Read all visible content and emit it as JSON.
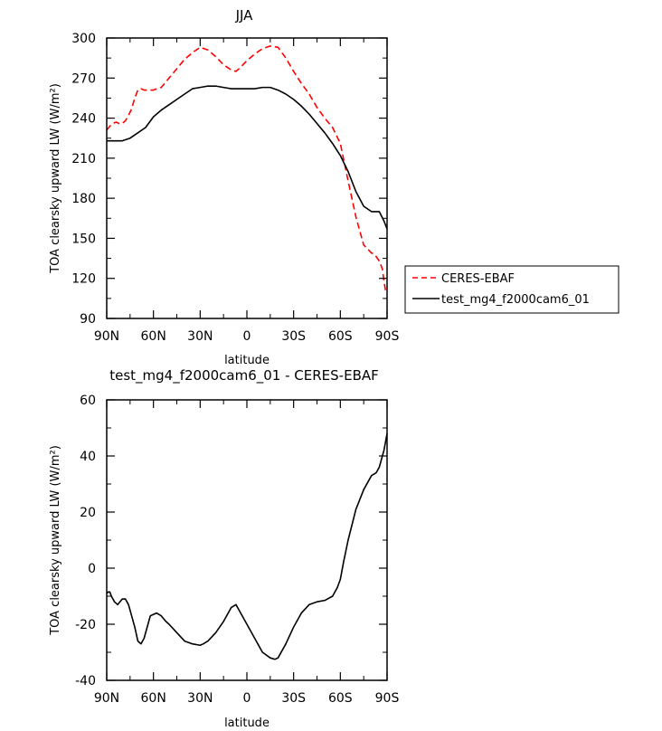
{
  "chart_data": [
    {
      "type": "line",
      "title": "JJA",
      "xlabel": "latitude",
      "ylabel": "TOA clearsky upward LW (W/m²)",
      "xlim": [
        90,
        -90
      ],
      "ylim": [
        90,
        300
      ],
      "xticks": [
        90,
        60,
        30,
        0,
        -30,
        -60,
        -90
      ],
      "xtick_labels": [
        "90N",
        "60N",
        "30N",
        "0",
        "30S",
        "60S",
        "90S"
      ],
      "yticks": [
        90,
        120,
        150,
        180,
        210,
        240,
        270,
        300
      ],
      "ytick_labels": [
        "90",
        "120",
        "150",
        "180",
        "210",
        "240",
        "270",
        "300"
      ],
      "legend_position": "right",
      "series": [
        {
          "name": "CERES-EBAF",
          "color": "#ff0000",
          "style": "dashed",
          "x": [
            90,
            88,
            86,
            84,
            82,
            80,
            78,
            76,
            74,
            72,
            70,
            68,
            66,
            64,
            62,
            60,
            58,
            55,
            52,
            50,
            45,
            40,
            35,
            30,
            25,
            20,
            15,
            10,
            7,
            5,
            0,
            -5,
            -10,
            -15,
            -20,
            -25,
            -30,
            -35,
            -40,
            -45,
            -50,
            -55,
            -60,
            -65,
            -70,
            -75,
            -80,
            -82,
            -85,
            -87,
            -88,
            -89,
            -90
          ],
          "values": [
            231,
            234,
            236,
            237,
            236,
            236,
            238,
            242,
            247,
            255,
            261,
            262,
            261,
            261,
            261,
            261,
            262,
            263,
            267,
            270,
            277,
            284,
            289,
            293,
            291,
            286,
            280,
            276,
            275,
            277,
            283,
            288,
            292,
            294,
            293,
            285,
            275,
            266,
            258,
            248,
            240,
            233,
            221,
            193,
            166,
            145,
            139,
            138,
            133,
            127,
            118,
            111,
            110
          ]
        },
        {
          "name": "test_mg4_f2000cam6_01",
          "color": "#000000",
          "style": "solid",
          "x": [
            90,
            85,
            80,
            75,
            70,
            65,
            60,
            55,
            50,
            45,
            40,
            35,
            30,
            25,
            20,
            15,
            10,
            5,
            0,
            -5,
            -10,
            -15,
            -20,
            -25,
            -30,
            -35,
            -40,
            -45,
            -50,
            -55,
            -60,
            -65,
            -70,
            -75,
            -80,
            -85,
            -88,
            -90
          ],
          "values": [
            223,
            223,
            223,
            225,
            229,
            233,
            241,
            246,
            250,
            254,
            258,
            262,
            263,
            264,
            264,
            263,
            262,
            262,
            262,
            262,
            263,
            263,
            261,
            258,
            254,
            249,
            243,
            236,
            229,
            221,
            212,
            200,
            185,
            174,
            170,
            170,
            163,
            157
          ]
        }
      ]
    },
    {
      "type": "line",
      "title": "test_mg4_f2000cam6_01 - CERES-EBAF",
      "xlabel": "latitude",
      "ylabel": "TOA clearsky upward LW (W/m²)",
      "xlim": [
        90,
        -90
      ],
      "ylim": [
        -40,
        60
      ],
      "xticks": [
        90,
        60,
        30,
        0,
        -30,
        -60,
        -90
      ],
      "xtick_labels": [
        "90N",
        "60N",
        "30N",
        "0",
        "30S",
        "60S",
        "90S"
      ],
      "yticks": [
        -40,
        -20,
        0,
        20,
        40,
        60
      ],
      "ytick_labels": [
        "-40",
        "-20",
        "0",
        "20",
        "40",
        "60"
      ],
      "series": [
        {
          "name": "test_mg4_f2000cam6_01 - CERES-EBAF",
          "color": "#000000",
          "style": "solid",
          "x": [
            90,
            89,
            88,
            87,
            85,
            83,
            80,
            78,
            76,
            74,
            72,
            70,
            68,
            66,
            64,
            62,
            60,
            58,
            55,
            52,
            50,
            45,
            40,
            35,
            30,
            28,
            25,
            20,
            15,
            10,
            7,
            5,
            0,
            -5,
            -10,
            -15,
            -18,
            -20,
            -25,
            -30,
            -35,
            -40,
            -45,
            -50,
            -55,
            -58,
            -60,
            -62,
            -65,
            -70,
            -75,
            -80,
            -83,
            -85,
            -87,
            -88,
            -89,
            -90
          ],
          "values": [
            -9,
            -8.5,
            -8.5,
            -10,
            -12,
            -13,
            -11,
            -11,
            -13,
            -17,
            -21,
            -26,
            -27,
            -25,
            -21,
            -17,
            -16.5,
            -16,
            -17,
            -19,
            -20,
            -23,
            -26,
            -27,
            -27.5,
            -27,
            -26,
            -23,
            -19,
            -14,
            -13,
            -15,
            -20,
            -25,
            -30,
            -32,
            -32.5,
            -32,
            -27,
            -21,
            -16,
            -13,
            -12,
            -11.5,
            -10,
            -7,
            -4,
            2,
            10,
            21,
            28,
            33,
            34,
            36,
            40,
            42,
            45,
            48
          ]
        }
      ]
    }
  ]
}
